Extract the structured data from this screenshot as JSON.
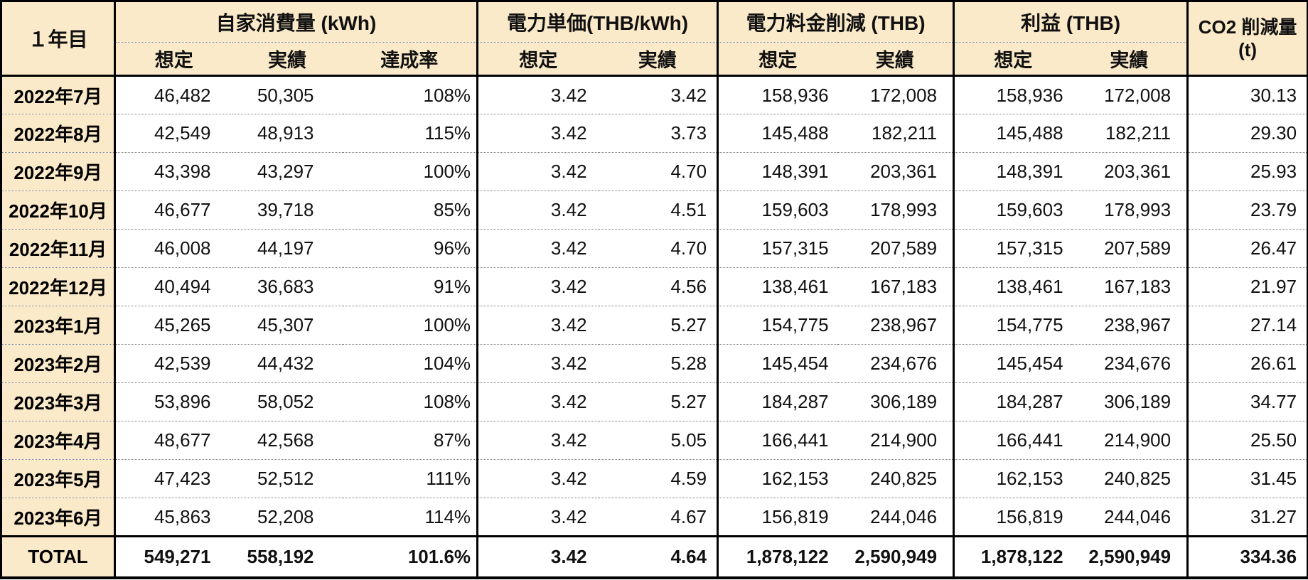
{
  "colors": {
    "header_bg": "#FBEAC9",
    "border": "#000000",
    "row_divider": "#7F7F7F",
    "cell_bg": "#FFFFFF"
  },
  "table": {
    "corner_label": "１年目",
    "groups": [
      {
        "label": "自家消費量 (kWh)",
        "subcols": [
          "想定",
          "実績",
          "達成率"
        ]
      },
      {
        "label": "電力単価(THB/kWh)",
        "subcols": [
          "想定",
          "実績"
        ]
      },
      {
        "label": "電力料金削減 (THB)",
        "subcols": [
          "想定",
          "実績"
        ]
      },
      {
        "label": "利益 (THB)",
        "subcols": [
          "想定",
          "実績"
        ]
      },
      {
        "label": "CO2 削減量",
        "unit": "(t)"
      }
    ],
    "rows": [
      {
        "month": "2022年7月",
        "values": [
          "46,482",
          "50,305",
          "108%",
          "3.42",
          "3.42",
          "158,936",
          "172,008",
          "158,936",
          "172,008",
          "30.13"
        ]
      },
      {
        "month": "2022年8月",
        "values": [
          "42,549",
          "48,913",
          "115%",
          "3.42",
          "3.73",
          "145,488",
          "182,211",
          "145,488",
          "182,211",
          "29.30"
        ]
      },
      {
        "month": "2022年9月",
        "values": [
          "43,398",
          "43,297",
          "100%",
          "3.42",
          "4.70",
          "148,391",
          "203,361",
          "148,391",
          "203,361",
          "25.93"
        ]
      },
      {
        "month": "2022年10月",
        "values": [
          "46,677",
          "39,718",
          "85%",
          "3.42",
          "4.51",
          "159,603",
          "178,993",
          "159,603",
          "178,993",
          "23.79"
        ]
      },
      {
        "month": "2022年11月",
        "values": [
          "46,008",
          "44,197",
          "96%",
          "3.42",
          "4.70",
          "157,315",
          "207,589",
          "157,315",
          "207,589",
          "26.47"
        ]
      },
      {
        "month": "2022年12月",
        "values": [
          "40,494",
          "36,683",
          "91%",
          "3.42",
          "4.56",
          "138,461",
          "167,183",
          "138,461",
          "167,183",
          "21.97"
        ]
      },
      {
        "month": "2023年1月",
        "values": [
          "45,265",
          "45,307",
          "100%",
          "3.42",
          "5.27",
          "154,775",
          "238,967",
          "154,775",
          "238,967",
          "27.14"
        ]
      },
      {
        "month": "2023年2月",
        "values": [
          "42,539",
          "44,432",
          "104%",
          "3.42",
          "5.28",
          "145,454",
          "234,676",
          "145,454",
          "234,676",
          "26.61"
        ]
      },
      {
        "month": "2023年3月",
        "values": [
          "53,896",
          "58,052",
          "108%",
          "3.42",
          "5.27",
          "184,287",
          "306,189",
          "184,287",
          "306,189",
          "34.77"
        ]
      },
      {
        "month": "2023年4月",
        "values": [
          "48,677",
          "42,568",
          "87%",
          "3.42",
          "5.05",
          "166,441",
          "214,900",
          "166,441",
          "214,900",
          "25.50"
        ]
      },
      {
        "month": "2023年5月",
        "values": [
          "47,423",
          "52,512",
          "111%",
          "3.42",
          "4.59",
          "162,153",
          "240,825",
          "162,153",
          "240,825",
          "31.45"
        ]
      },
      {
        "month": "2023年6月",
        "values": [
          "45,863",
          "52,208",
          "114%",
          "3.42",
          "4.67",
          "156,819",
          "244,046",
          "156,819",
          "244,046",
          "31.27"
        ]
      }
    ],
    "total_row": {
      "label": "TOTAL",
      "values": [
        "549,271",
        "558,192",
        "101.6%",
        "3.42",
        "4.64",
        "1,878,122",
        "2,590,949",
        "1,878,122",
        "2,590,949",
        "334.36"
      ]
    }
  }
}
